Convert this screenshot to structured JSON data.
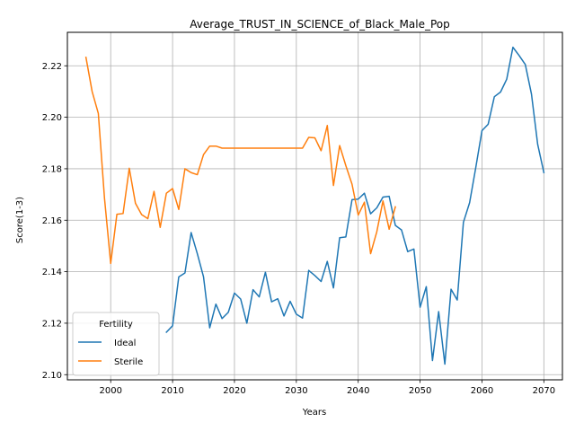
{
  "chart_data": {
    "type": "line",
    "title": "Average_TRUST_IN_SCIENCE_of_Black_Male_Pop",
    "xlabel": "Years",
    "ylabel": "Score(1-3)",
    "xlim": [
      1993,
      2073
    ],
    "ylim": [
      2.098,
      2.233
    ],
    "xticks": [
      2000,
      2010,
      2020,
      2030,
      2040,
      2050,
      2060,
      2070
    ],
    "yticks": [
      2.1,
      2.12,
      2.14,
      2.16,
      2.18,
      2.2,
      2.22
    ],
    "xtick_labels": [
      "2000",
      "2010",
      "2020",
      "2030",
      "2040",
      "2050",
      "2060",
      "2070"
    ],
    "ytick_labels": [
      "2.10",
      "2.12",
      "2.14",
      "2.16",
      "2.18",
      "2.20",
      "2.22"
    ],
    "grid": true,
    "legend": {
      "title": "Fertility",
      "position": "lower-left"
    },
    "series": [
      {
        "name": "Ideal",
        "color": "#1f77b4",
        "x": [
          2009,
          2010,
          2011,
          2012,
          2013,
          2014,
          2015,
          2016,
          2017,
          2018,
          2019,
          2020,
          2021,
          2022,
          2023,
          2024,
          2025,
          2026,
          2027,
          2028,
          2029,
          2030,
          2031,
          2032,
          2033,
          2034,
          2035,
          2036,
          2037,
          2038,
          2039,
          2040,
          2041,
          2042,
          2043,
          2044,
          2045,
          2046,
          2047,
          2048,
          2049,
          2050,
          2051,
          2052,
          2053,
          2054,
          2055,
          2056,
          2057,
          2058,
          2059,
          2060,
          2061,
          2062,
          2063,
          2064,
          2065,
          2066,
          2067,
          2068,
          2069,
          2070
        ],
        "y": [
          2.1165,
          2.119,
          2.138,
          2.1395,
          2.1552,
          2.147,
          2.138,
          2.1182,
          2.1274,
          2.1218,
          2.1242,
          2.1317,
          2.1294,
          2.12,
          2.133,
          2.1302,
          2.1398,
          2.1283,
          2.1295,
          2.1228,
          2.1285,
          2.1235,
          2.122,
          2.1405,
          2.1385,
          2.1362,
          2.144,
          2.1337,
          2.1532,
          2.1535,
          2.168,
          2.1682,
          2.1705,
          2.1625,
          2.1648,
          2.169,
          2.1693,
          2.158,
          2.1562,
          2.1478,
          2.1488,
          2.1262,
          2.1342,
          2.1055,
          2.1245,
          2.1041,
          2.1332,
          2.129,
          2.1592,
          2.1668,
          2.1805,
          2.1948,
          2.1973,
          2.208,
          2.2098,
          2.2148,
          2.2272,
          2.224,
          2.2205,
          2.209,
          2.1895,
          2.1785
        ]
      },
      {
        "name": "Sterile",
        "color": "#ff7f0e",
        "x": [
          1996,
          1997,
          1998,
          1999,
          2000,
          2001,
          2002,
          2003,
          2004,
          2005,
          2006,
          2007,
          2008,
          2009,
          2010,
          2011,
          2012,
          2013,
          2014,
          2015,
          2016,
          2017,
          2018,
          2019,
          2020,
          2021,
          2022,
          2023,
          2024,
          2025,
          2026,
          2027,
          2028,
          2029,
          2030,
          2031,
          2032,
          2033,
          2034,
          2035,
          2036,
          2037,
          2038,
          2039,
          2040,
          2041,
          2042,
          2043,
          2044,
          2045,
          2046
        ],
        "y": [
          2.2233,
          2.21,
          2.2015,
          2.1685,
          2.1432,
          2.1623,
          2.1626,
          2.1802,
          2.1666,
          2.1622,
          2.1606,
          2.1712,
          2.1572,
          2.1705,
          2.1723,
          2.1642,
          2.18,
          2.1785,
          2.1777,
          2.1855,
          2.1888,
          2.1888,
          2.188,
          2.188,
          2.188,
          2.188,
          2.188,
          2.188,
          2.188,
          2.188,
          2.188,
          2.188,
          2.188,
          2.188,
          2.188,
          2.188,
          2.1922,
          2.192,
          2.187,
          2.1968,
          2.1735,
          2.189,
          2.1812,
          2.174,
          2.162,
          2.167,
          2.147,
          2.1555,
          2.1675,
          2.1565,
          2.1652
        ]
      }
    ]
  }
}
